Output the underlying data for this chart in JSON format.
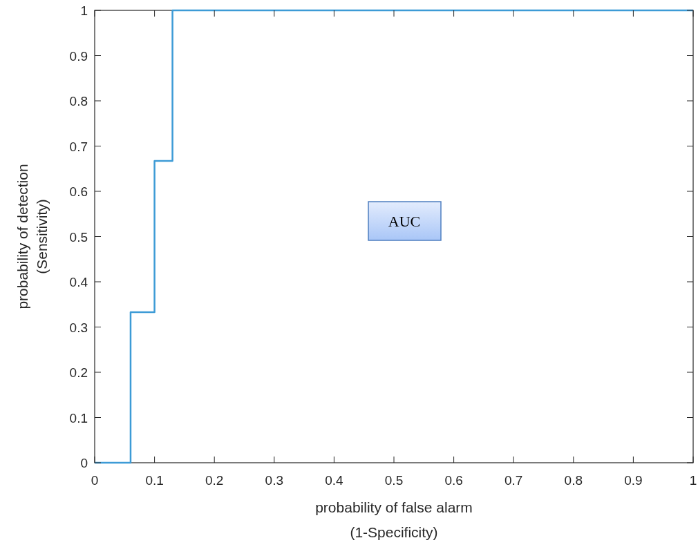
{
  "chart_data": {
    "type": "step",
    "xlabel": "probability of false alarm\n(1-Specificity)",
    "ylabel": "probability of detection\n(Sensitivity)",
    "x": [
      0,
      0.06,
      0.1,
      0.13,
      1
    ],
    "series": [
      {
        "color": "#3d9bd6",
        "values": [
          0,
          0.333,
          0.667,
          1,
          1
        ]
      }
    ],
    "xlim": [
      0,
      1
    ],
    "ylim": [
      0,
      1
    ],
    "xticks": [
      0,
      0.1,
      0.2,
      0.3,
      0.4,
      0.5,
      0.6,
      0.7,
      0.8,
      0.9,
      1
    ],
    "yticks": [
      0,
      0.1,
      0.2,
      0.3,
      0.4,
      0.5,
      0.6,
      0.7,
      0.8,
      0.9,
      1
    ],
    "annotations": [
      "AUC"
    ],
    "grid": false
  }
}
